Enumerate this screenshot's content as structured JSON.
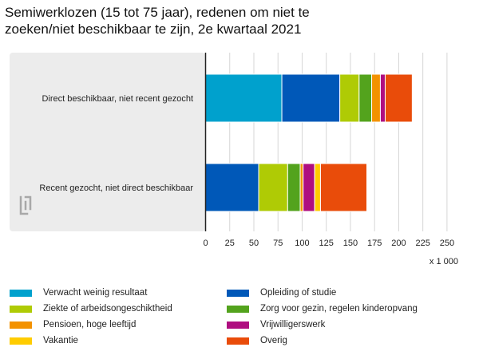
{
  "chart_data": {
    "type": "bar",
    "orientation": "horizontal",
    "stacked": true,
    "title_lines": [
      "Semiwerklozen (15 tot 75 jaar), redenen om niet te",
      "zoeken/niet beschikbaar te zijn, 2e kwartaal 2021"
    ],
    "categories": [
      "Direct beschikbaar, niet recent gezocht",
      "Recent gezocht, niet direct beschikbaar"
    ],
    "series": [
      {
        "name": "Verwacht weinig resultaat",
        "color": "#00a1cd",
        "values": [
          79,
          0
        ]
      },
      {
        "name": "Opleiding of studie",
        "color": "#0058b8",
        "values": [
          60,
          55
        ]
      },
      {
        "name": "Ziekte of arbeidsongeschiktheid",
        "color": "#afcb05",
        "values": [
          20,
          30
        ]
      },
      {
        "name": "Zorg voor gezin, regelen kinderopvang",
        "color": "#53a31d",
        "values": [
          13,
          13
        ]
      },
      {
        "name": "Pensioen, hoge leeftijd",
        "color": "#f39200",
        "values": [
          9,
          3
        ]
      },
      {
        "name": "Vrijwilligerswerk",
        "color": "#af0e80",
        "values": [
          5,
          12
        ]
      },
      {
        "name": "Vakantie",
        "color": "#ffcc00",
        "values": [
          0,
          6
        ]
      },
      {
        "name": "Overig",
        "color": "#e94c0a",
        "values": [
          28,
          48
        ]
      }
    ],
    "xlim": [
      0,
      260
    ],
    "xticks": [
      "0",
      "25",
      "50",
      "75",
      "100",
      "125",
      "150",
      "175",
      "200",
      "225",
      "250"
    ],
    "xtick_values": [
      0,
      25,
      50,
      75,
      100,
      125,
      150,
      175,
      200,
      225,
      250
    ],
    "xunit": "x 1 000",
    "legend_position": "bottom"
  }
}
